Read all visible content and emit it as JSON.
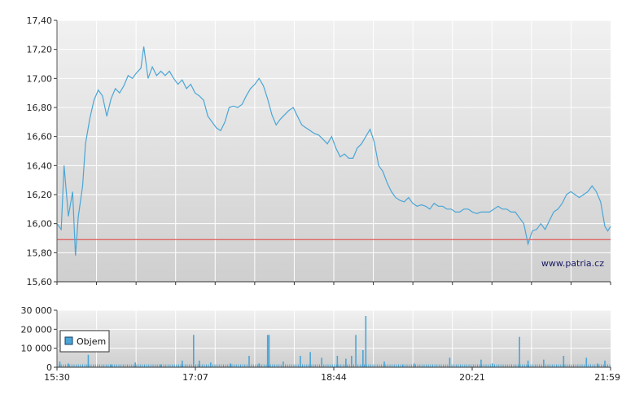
{
  "chart_data": [
    {
      "type": "line",
      "title": "",
      "xlabel": "",
      "ylabel": "",
      "ylim": [
        15.6,
        17.4
      ],
      "y_ticks": [
        "17,40",
        "17,20",
        "17,00",
        "16,80",
        "16,60",
        "16,40",
        "16,20",
        "16,00",
        "15,80",
        "15,60"
      ],
      "x_range_minutes": [
        0,
        389
      ],
      "grid": true,
      "reference_line": {
        "value": 15.89,
        "color": "#e05a5a"
      },
      "series": [
        {
          "color": "#4aa6d6",
          "points": [
            [
              0,
              16.0
            ],
            [
              3,
              15.96
            ],
            [
              5,
              16.4
            ],
            [
              8,
              16.05
            ],
            [
              11,
              16.22
            ],
            [
              13,
              15.78
            ],
            [
              15,
              16.05
            ],
            [
              18,
              16.26
            ],
            [
              20,
              16.55
            ],
            [
              23,
              16.72
            ],
            [
              26,
              16.85
            ],
            [
              29,
              16.92
            ],
            [
              32,
              16.88
            ],
            [
              35,
              16.74
            ],
            [
              38,
              16.86
            ],
            [
              41,
              16.93
            ],
            [
              44,
              16.9
            ],
            [
              47,
              16.95
            ],
            [
              50,
              17.02
            ],
            [
              53,
              17.0
            ],
            [
              56,
              17.04
            ],
            [
              59,
              17.07
            ],
            [
              61,
              17.22
            ],
            [
              64,
              17.0
            ],
            [
              67,
              17.08
            ],
            [
              70,
              17.02
            ],
            [
              73,
              17.05
            ],
            [
              76,
              17.02
            ],
            [
              79,
              17.05
            ],
            [
              82,
              17.0
            ],
            [
              85,
              16.96
            ],
            [
              88,
              16.99
            ],
            [
              91,
              16.93
            ],
            [
              94,
              16.96
            ],
            [
              97,
              16.9
            ],
            [
              100,
              16.88
            ],
            [
              103,
              16.85
            ],
            [
              106,
              16.74
            ],
            [
              109,
              16.7
            ],
            [
              112,
              16.66
            ],
            [
              115,
              16.64
            ],
            [
              118,
              16.7
            ],
            [
              121,
              16.8
            ],
            [
              124,
              16.81
            ],
            [
              127,
              16.8
            ],
            [
              130,
              16.82
            ],
            [
              133,
              16.88
            ],
            [
              136,
              16.93
            ],
            [
              139,
              16.96
            ],
            [
              142,
              17.0
            ],
            [
              145,
              16.95
            ],
            [
              148,
              16.86
            ],
            [
              151,
              16.75
            ],
            [
              154,
              16.68
            ],
            [
              157,
              16.72
            ],
            [
              160,
              16.75
            ],
            [
              163,
              16.78
            ],
            [
              166,
              16.8
            ],
            [
              169,
              16.74
            ],
            [
              172,
              16.68
            ],
            [
              175,
              16.66
            ],
            [
              178,
              16.64
            ],
            [
              181,
              16.62
            ],
            [
              184,
              16.61
            ],
            [
              187,
              16.58
            ],
            [
              190,
              16.55
            ],
            [
              193,
              16.6
            ],
            [
              196,
              16.52
            ],
            [
              199,
              16.46
            ],
            [
              202,
              16.48
            ],
            [
              205,
              16.45
            ],
            [
              208,
              16.45
            ],
            [
              211,
              16.52
            ],
            [
              214,
              16.55
            ],
            [
              217,
              16.6
            ],
            [
              220,
              16.65
            ],
            [
              223,
              16.56
            ],
            [
              226,
              16.4
            ],
            [
              229,
              16.36
            ],
            [
              232,
              16.28
            ],
            [
              235,
              16.22
            ],
            [
              238,
              16.18
            ],
            [
              241,
              16.16
            ],
            [
              244,
              16.15
            ],
            [
              247,
              16.18
            ],
            [
              250,
              16.14
            ],
            [
              253,
              16.12
            ],
            [
              256,
              16.13
            ],
            [
              259,
              16.12
            ],
            [
              262,
              16.1
            ],
            [
              265,
              16.14
            ],
            [
              268,
              16.12
            ],
            [
              271,
              16.12
            ],
            [
              274,
              16.1
            ],
            [
              277,
              16.1
            ],
            [
              280,
              16.08
            ],
            [
              283,
              16.08
            ],
            [
              286,
              16.1
            ],
            [
              289,
              16.1
            ],
            [
              292,
              16.08
            ],
            [
              295,
              16.07
            ],
            [
              298,
              16.08
            ],
            [
              301,
              16.08
            ],
            [
              304,
              16.08
            ],
            [
              307,
              16.1
            ],
            [
              310,
              16.12
            ],
            [
              313,
              16.1
            ],
            [
              316,
              16.1
            ],
            [
              319,
              16.08
            ],
            [
              322,
              16.08
            ],
            [
              325,
              16.04
            ],
            [
              328,
              16.0
            ],
            [
              331,
              15.86
            ],
            [
              334,
              15.95
            ],
            [
              337,
              15.96
            ],
            [
              340,
              16.0
            ],
            [
              343,
              15.96
            ],
            [
              346,
              16.02
            ],
            [
              349,
              16.08
            ],
            [
              352,
              16.1
            ],
            [
              355,
              16.14
            ],
            [
              358,
              16.2
            ],
            [
              361,
              16.22
            ],
            [
              364,
              16.2
            ],
            [
              367,
              16.18
            ],
            [
              370,
              16.2
            ],
            [
              373,
              16.22
            ],
            [
              376,
              16.26
            ],
            [
              379,
              16.22
            ],
            [
              382,
              16.15
            ],
            [
              385,
              15.98
            ],
            [
              387,
              15.95
            ],
            [
              389,
              15.98
            ]
          ]
        }
      ],
      "watermark": "www.patria.cz"
    },
    {
      "type": "bar",
      "title": "",
      "xlabel": "",
      "ylabel": "",
      "ylim": [
        0,
        30000
      ],
      "y_ticks": [
        "30 000",
        "20 000",
        "10 000",
        "0"
      ],
      "x_ticks": [
        "15:30",
        "17:07",
        "18:44",
        "20:21",
        "21:59"
      ],
      "x_range_minutes": [
        0,
        389
      ],
      "grid": true,
      "legend": {
        "placement": "left",
        "entries": [
          "Objem"
        ]
      },
      "series": [
        {
          "name": "Objem",
          "color": "#4aa6d6",
          "bars": [
            [
              2,
              3000
            ],
            [
              8,
              2000
            ],
            [
              22,
              6500
            ],
            [
              38,
              1500
            ],
            [
              55,
              2500
            ],
            [
              73,
              1500
            ],
            [
              88,
              3500
            ],
            [
              96,
              17000
            ],
            [
              100,
              3500
            ],
            [
              108,
              2500
            ],
            [
              122,
              2000
            ],
            [
              135,
              6000
            ],
            [
              142,
              2000
            ],
            [
              148,
              17000
            ],
            [
              149,
              17000
            ],
            [
              159,
              3000
            ],
            [
              171,
              6000
            ],
            [
              178,
              8000
            ],
            [
              186,
              5000
            ],
            [
              197,
              6000
            ],
            [
              203,
              4500
            ],
            [
              207,
              6000
            ],
            [
              210,
              17000
            ],
            [
              215,
              9000
            ],
            [
              217,
              27000
            ],
            [
              230,
              3000
            ],
            [
              243,
              1500
            ],
            [
              251,
              2000
            ],
            [
              276,
              5000
            ],
            [
              298,
              4000
            ],
            [
              306,
              2000
            ],
            [
              325,
              16000
            ],
            [
              331,
              3500
            ],
            [
              342,
              4000
            ],
            [
              356,
              6000
            ],
            [
              372,
              5000
            ],
            [
              380,
              2000
            ],
            [
              385,
              3500
            ]
          ],
          "baseline": 1500
        }
      ]
    }
  ]
}
